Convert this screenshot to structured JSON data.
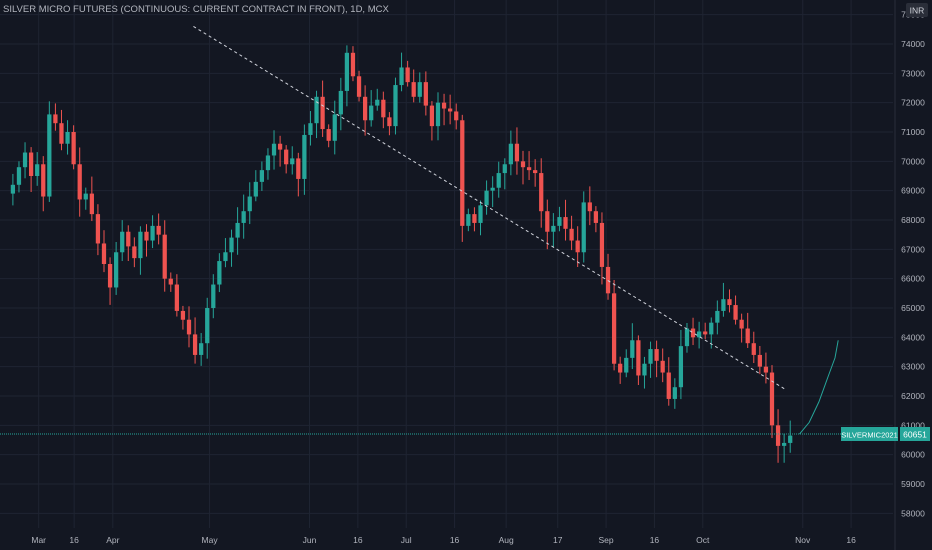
{
  "header": {
    "title": "SILVER MICRO FUTURES (CONTINUOUS: CURRENT CONTRACT IN FRONT), 1D, MCX"
  },
  "price_axis": {
    "currency": "INR",
    "ticks": [
      "75000",
      "74000",
      "73000",
      "72000",
      "71000",
      "70000",
      "69000",
      "68000",
      "67000",
      "66000",
      "65000",
      "64000",
      "63000",
      "62000",
      "61000",
      "60000",
      "59000",
      "58000"
    ]
  },
  "time_axis": {
    "ticks": [
      "Mar",
      "16",
      "Apr",
      "May",
      "Jun",
      "16",
      "Jul",
      "16",
      "Aug",
      "17",
      "Sep",
      "16",
      "Oct",
      "Nov",
      "16"
    ]
  },
  "last_price": {
    "symbol": "SILVERMIC2021",
    "value": "60651",
    "price": 60651
  },
  "colors": {
    "background": "#131722",
    "up": "#26a69a",
    "down": "#ef5350",
    "text": "#b2b5be",
    "grid": "#1f2432",
    "trendline": "#d1d4dc"
  },
  "chart_data": {
    "type": "candlestick",
    "title": "SILVER MICRO FUTURES (CONTINUOUS: CURRENT CONTRACT IN FRONT), 1D, MCX",
    "ylim": [
      57500,
      75500
    ],
    "x_ticks": [
      {
        "label": "Mar",
        "day": 8
      },
      {
        "label": "16",
        "day": 19
      },
      {
        "label": "Apr",
        "day": 31
      },
      {
        "label": "May",
        "day": 61
      },
      {
        "label": "Jun",
        "day": 92
      },
      {
        "label": "16",
        "day": 107
      },
      {
        "label": "Jul",
        "day": 122
      },
      {
        "label": "16",
        "day": 137
      },
      {
        "label": "Aug",
        "day": 153
      },
      {
        "label": "17",
        "day": 169
      },
      {
        "label": "Sep",
        "day": 184
      },
      {
        "label": "16",
        "day": 199
      },
      {
        "label": "Oct",
        "day": 214
      },
      {
        "label": "Nov",
        "day": 245
      },
      {
        "label": "16",
        "day": 260
      }
    ],
    "xlim": [
      -4,
      273
    ],
    "closes": [
      69200,
      69800,
      70300,
      69500,
      69900,
      68800,
      71600,
      71300,
      70600,
      71000,
      69900,
      68700,
      68900,
      68200,
      67200,
      66500,
      65700,
      66900,
      67600,
      67100,
      66700,
      67600,
      67300,
      67800,
      67500,
      66000,
      65800,
      64900,
      64600,
      64100,
      63400,
      63800,
      65000,
      65800,
      66600,
      66900,
      67400,
      67900,
      68300,
      68800,
      69300,
      69700,
      70200,
      70600,
      70400,
      69900,
      70100,
      69400,
      70900,
      71300,
      72200,
      71100,
      70700,
      71600,
      72400,
      73700,
      72900,
      72200,
      71400,
      71900,
      72100,
      71500,
      71200,
      72600,
      73200,
      72700,
      72200,
      72700,
      71900,
      71200,
      72000,
      71800,
      71700,
      71400,
      67800,
      68200,
      67900,
      68500,
      69000,
      69100,
      69600,
      69900,
      70600,
      70000,
      69800,
      69700,
      69600,
      68300,
      67600,
      67800,
      68100,
      67700,
      67300,
      66900,
      68600,
      68300,
      67900,
      66400,
      65500,
      63100,
      62800,
      63300,
      63900,
      62700,
      63100,
      63600,
      63200,
      62800,
      61900,
      62300,
      63700,
      64300,
      64000,
      64200,
      64100,
      64500,
      64900,
      65300,
      65100,
      64600,
      64300,
      63800,
      63400,
      63000,
      62800,
      61000,
      60300,
      60400,
      60651
    ],
    "trendline": {
      "from": {
        "day": 56,
        "price": 74600
      },
      "to": {
        "day": 240,
        "price": 62200
      }
    },
    "projection": [
      {
        "day": 244,
        "price": 60700
      },
      {
        "day": 247,
        "price": 61100
      },
      {
        "day": 250,
        "price": 61800
      },
      {
        "day": 253,
        "price": 62700
      },
      {
        "day": 255,
        "price": 63300
      },
      {
        "day": 256,
        "price": 63900
      }
    ]
  }
}
